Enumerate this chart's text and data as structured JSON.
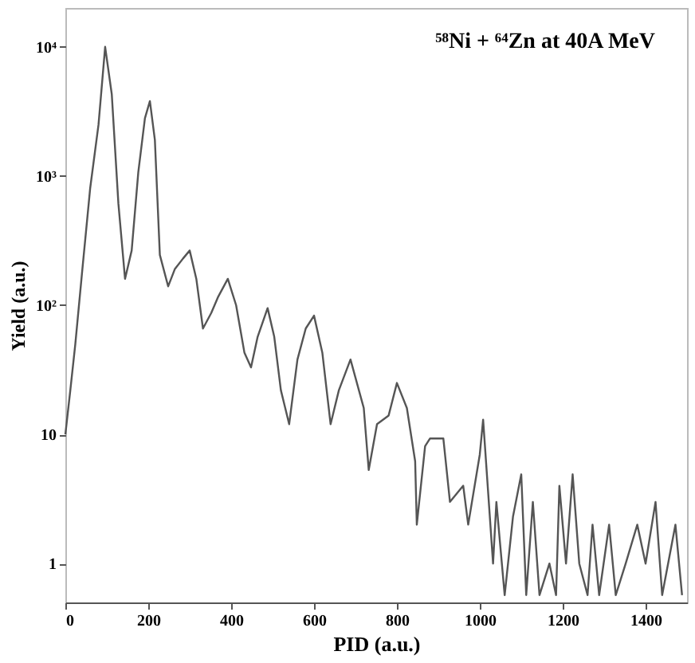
{
  "chart_data": {
    "type": "line",
    "title": "⁵⁸Ni + ⁶⁴Zn at 40A MeV",
    "xlabel": "PID (a.u.)",
    "ylabel": "Yield (a.u.)",
    "x": [
      0,
      12,
      24,
      40,
      60,
      80,
      96,
      112,
      128,
      144,
      160,
      176,
      192,
      204,
      216,
      228,
      248,
      264,
      284,
      300,
      316,
      332,
      352,
      368,
      392,
      412,
      432,
      448,
      464,
      488,
      504,
      520,
      540,
      560,
      580,
      600,
      620,
      640,
      660,
      688,
      720,
      732,
      752,
      780,
      800,
      824,
      844,
      848,
      868,
      880,
      912,
      928,
      960,
      972,
      1000,
      1008,
      1032,
      1040,
      1060,
      1080,
      1100,
      1112,
      1128,
      1144,
      1168,
      1184,
      1192,
      1208,
      1224,
      1240,
      1260,
      1272,
      1288,
      1312,
      1328,
      1352,
      1380,
      1400,
      1424,
      1440,
      1472,
      1488
    ],
    "series": [
      {
        "color": "#555555",
        "values": [
          10,
          22,
          50,
          175,
          810,
          2500,
          10000,
          4300,
          610,
          160,
          265,
          1070,
          2800,
          3800,
          1900,
          245,
          140,
          190,
          230,
          265,
          160,
          66,
          87,
          115,
          160,
          100,
          43,
          33,
          57,
          95,
          57,
          22,
          12,
          38,
          66,
          83,
          43,
          12,
          22,
          38,
          16,
          5.3,
          12,
          14,
          25,
          16,
          6.2,
          2,
          8.1,
          9.3,
          9.3,
          3,
          4,
          2,
          7,
          13,
          1,
          3,
          0.57,
          2.3,
          4.9,
          0.57,
          3,
          0.57,
          1,
          0.57,
          4,
          1,
          4.9,
          1,
          0.57,
          2,
          0.57,
          2,
          0.57,
          1,
          2,
          1,
          3,
          0.57,
          2,
          0.57
        ]
      }
    ],
    "xlim": [
      0,
      1500
    ],
    "xticks": [
      0,
      200,
      400,
      600,
      800,
      1000,
      1200,
      1400
    ],
    "ylim": [
      0.5,
      20000
    ],
    "yticks": [
      {
        "value": 1,
        "label": "1"
      },
      {
        "value": 10,
        "label": "10"
      },
      {
        "value": 100,
        "label": "10²"
      },
      {
        "value": 1000,
        "label": "10³"
      },
      {
        "value": 10000,
        "label": "10⁴"
      }
    ],
    "log": true,
    "grid": false,
    "marker": "none",
    "line_style": "solid"
  }
}
